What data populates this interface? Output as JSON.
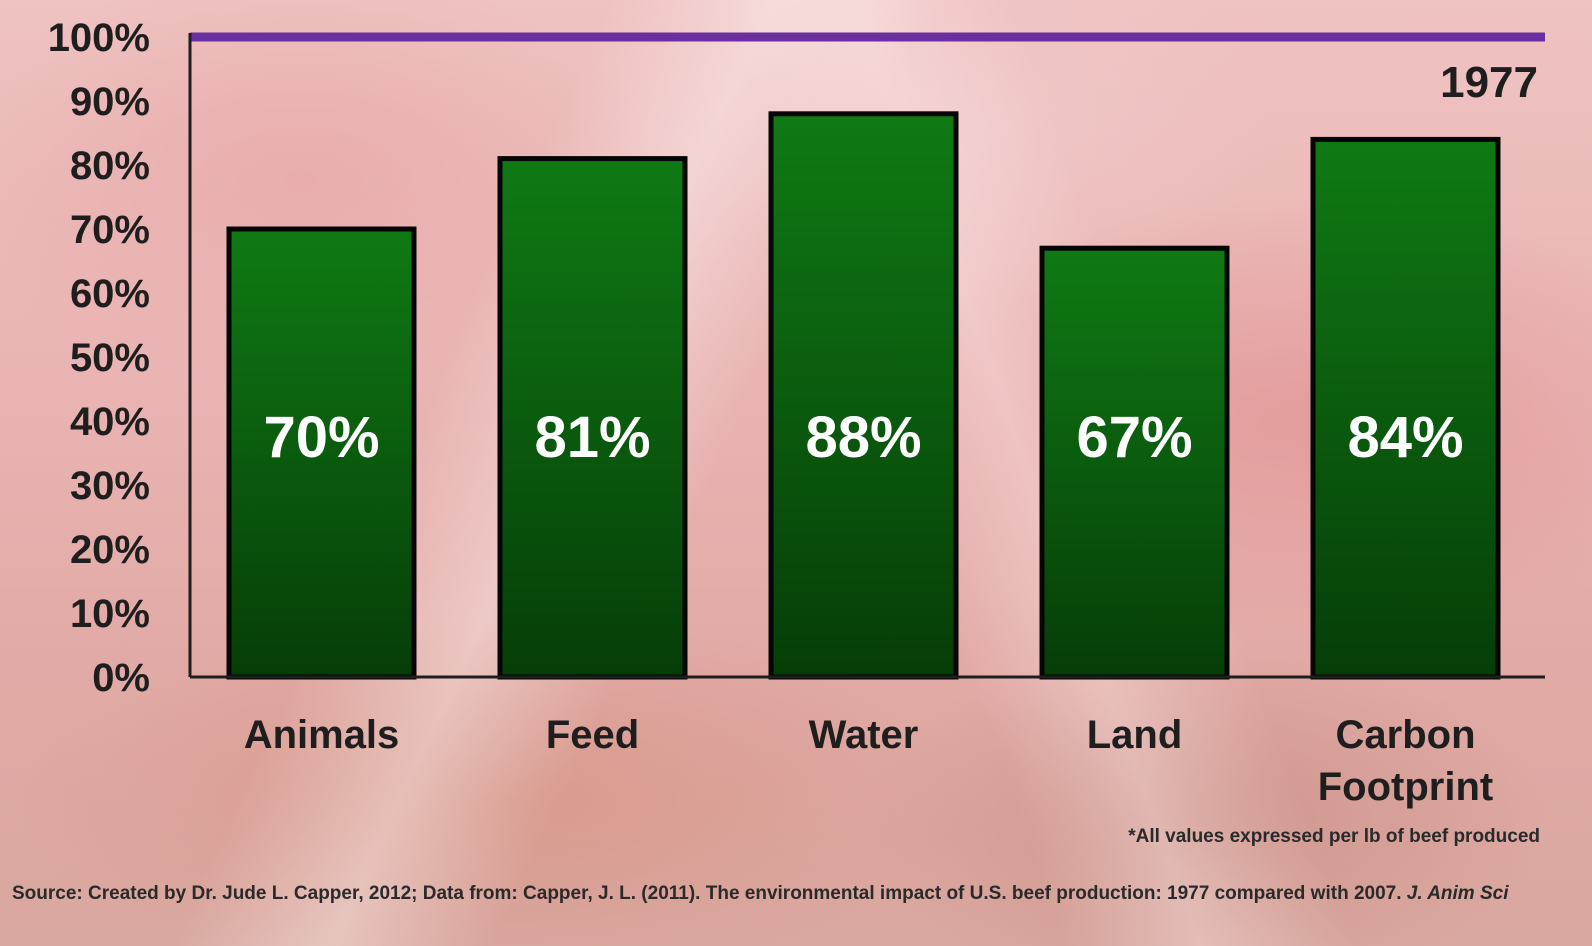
{
  "chart_data": {
    "type": "bar",
    "categories": [
      "Animals",
      "Feed",
      "Water",
      "Land",
      "Carbon Footprint"
    ],
    "category_lines": [
      [
        "Animals"
      ],
      [
        "Feed"
      ],
      [
        "Water"
      ],
      [
        "Land"
      ],
      [
        "Carbon",
        "Footprint"
      ]
    ],
    "values": [
      70,
      81,
      88,
      67,
      84
    ],
    "value_labels": [
      "70%",
      "81%",
      "88%",
      "67%",
      "84%"
    ],
    "yticks": [
      "0%",
      "10%",
      "20%",
      "30%",
      "40%",
      "50%",
      "60%",
      "70%",
      "80%",
      "90%",
      "100%"
    ],
    "ylim": [
      0,
      100
    ],
    "reference_line": {
      "value": 100,
      "label": "1977"
    },
    "grid": false,
    "colors": {
      "bar_top": "#0f7a14",
      "bar_bottom": "#063d08",
      "bar_edge": "#050505",
      "reference_line": "#6a2fa0",
      "axis": "#1e1e1e"
    }
  },
  "footnote": "*All values expressed per lb of beef produced",
  "source": {
    "text": "Source: Created by Dr. Jude L. Capper, 2012; Data from: Capper, J. L. (2011). The environmental impact of U.S. beef production: 1977 compared with 2007.",
    "journal": "J. Anim Sci"
  }
}
